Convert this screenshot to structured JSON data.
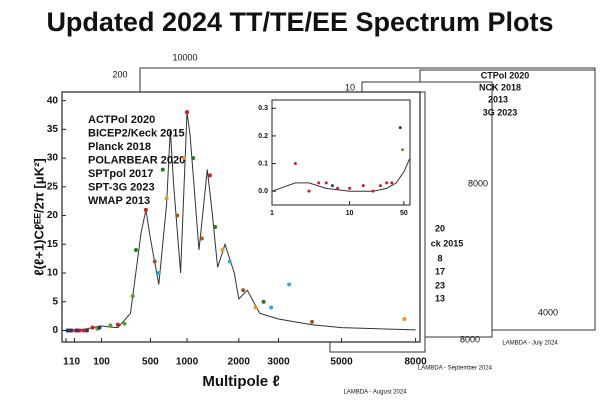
{
  "page": {
    "title": "Updated 2024 TT/TE/EE Spectrum Plots"
  },
  "background": {
    "labels": [
      "10000",
      "200",
      "10",
      "8000",
      "4000",
      "8000",
      "CTPol 2020",
      "NCK 2018",
      "2013",
      "3G 2023",
      "20",
      "ck 2015",
      "8",
      "17",
      "23",
      "13",
      "LAMBDA - July 2024",
      "LAMBDA - September 2024",
      "LAMBDA - August 2024"
    ],
    "colors": [
      "#111111",
      "#111111",
      "#111111",
      "#111111",
      "#111111",
      "#111111",
      "#1e7b1e",
      "#d7191c",
      "#a0522d",
      "#f7941d",
      "#1e7b1e",
      "#5aa02c",
      "#d7191c",
      "#a0522d",
      "#f7941d",
      "#1f3a70",
      "#555555",
      "#555555",
      "#555555"
    ]
  },
  "chart_data": [
    {
      "type": "scatter",
      "xscale": "sqrt",
      "xlabel": "Multipole ℓ",
      "ylabel": "ℓ(ℓ+1)Cℓᴱᴱ/2π [μK²]",
      "xlim": [
        0,
        8200
      ],
      "xticks": [
        1,
        10,
        100,
        500,
        1000,
        2000,
        3000,
        5000,
        8000
      ],
      "ylim": [
        -2,
        41.5
      ],
      "yticks": [
        0,
        5,
        10,
        15,
        20,
        25,
        30,
        35,
        40
      ],
      "model": {
        "color": "#333333",
        "x": [
          1,
          10,
          30,
          100,
          150,
          200,
          300,
          400,
          450,
          500,
          600,
          700,
          750,
          800,
          900,
          1000,
          1050,
          1200,
          1350,
          1450,
          1550,
          1700,
          1900,
          2000,
          2200,
          2500,
          3000,
          4000,
          5000,
          8000
        ],
        "values": [
          0,
          0.1,
          0.2,
          0.8,
          0.6,
          0.5,
          3,
          17,
          21,
          16,
          8,
          22,
          35,
          25,
          10,
          38,
          34,
          14,
          28,
          20,
          11,
          15,
          10,
          5.5,
          7,
          3,
          2,
          1,
          0.5,
          0.1
        ]
      },
      "series": [
        {
          "name": "ACTPol 2020",
          "color": "#1e7b1e",
          "x": [
            350,
            650,
            1100,
            1500,
            2600
          ],
          "values": [
            14,
            28,
            30,
            18,
            5
          ]
        },
        {
          "name": "BICEP2/Keck 2015",
          "color": "#5aa02c",
          "x": [
            40,
            80,
            150,
            250,
            320
          ],
          "values": [
            0.1,
            0.3,
            0.9,
            1.2,
            6
          ]
        },
        {
          "name": "Planck 2018",
          "color": "#d7191c",
          "x": [
            3,
            6,
            12,
            20,
            30,
            60,
            200,
            450,
            1000,
            1400
          ],
          "values": [
            0,
            0,
            0,
            0,
            0,
            0.5,
            1,
            21,
            38,
            27
          ]
        },
        {
          "name": "POLARBEAR 2020",
          "color": "#29abe2",
          "x": [
            600,
            1800,
            2800,
            3300
          ],
          "values": [
            10,
            12,
            4,
            8
          ]
        },
        {
          "name": "SPTpol 2017",
          "color": "#a0522d",
          "x": [
            550,
            850,
            1250,
            2100,
            4000
          ],
          "values": [
            12,
            20,
            16,
            7,
            1.5
          ]
        },
        {
          "name": "SPT-3G 2023",
          "color": "#f7941d",
          "x": [
            700,
            950,
            1650,
            2400,
            7500
          ],
          "values": [
            23,
            30,
            14,
            4,
            2
          ]
        },
        {
          "name": "WMAP 2013",
          "color": "#1f3a70",
          "x": [
            2,
            5,
            15,
            40,
            90
          ],
          "values": [
            0,
            0,
            0,
            0,
            0.5
          ]
        }
      ]
    },
    {
      "type": "scatter",
      "xscale": "log",
      "xlim": [
        1,
        60
      ],
      "xticks": [
        1,
        10,
        50
      ],
      "ylim": [
        -0.05,
        0.33
      ],
      "yticks": [
        {
          "value": 0,
          "label": "0.0"
        },
        0.1,
        0.2,
        0.3
      ],
      "model": {
        "color": "#333333",
        "x": [
          1,
          2,
          3,
          5,
          10,
          20,
          30,
          40,
          50,
          60
        ],
        "values": [
          0,
          0.03,
          0.03,
          0.01,
          0,
          0,
          0.01,
          0.03,
          0.07,
          0.12
        ]
      },
      "series": [
        {
          "color": "#d7191c",
          "x": [
            2,
            3,
            4,
            5,
            7,
            10,
            15,
            20,
            25,
            30,
            35
          ],
          "values": [
            0.1,
            0,
            0.03,
            0.03,
            0.01,
            0.01,
            0.02,
            0,
            0.02,
            0.03,
            0.03
          ]
        },
        {
          "color": "#1f3a70",
          "x": [
            6,
            45
          ],
          "values": [
            0.02,
            0.23
          ]
        },
        {
          "color": "#5aa02c",
          "x": [
            48
          ],
          "values": [
            0.15
          ]
        }
      ]
    }
  ]
}
